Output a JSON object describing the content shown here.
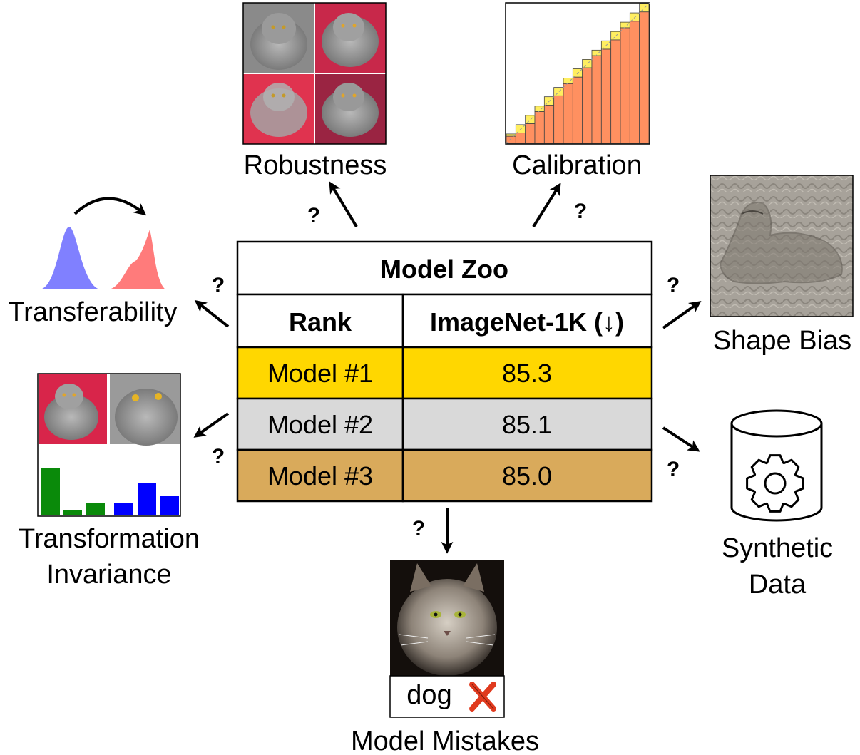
{
  "table": {
    "title": "Model Zoo",
    "columns": [
      "Rank",
      "ImageNet-1K (↓)"
    ],
    "rows": [
      {
        "model": "Model #1",
        "score": "85.3",
        "color": "#ffd700"
      },
      {
        "model": "Model #2",
        "score": "85.1",
        "color": "#d9d9d9"
      },
      {
        "model": "Model #3",
        "score": "85.0",
        "color": "#d9aa5b"
      }
    ]
  },
  "labels": {
    "robustness": "Robustness",
    "calibration": "Calibration",
    "shape_bias": "Shape Bias",
    "transferability": "Transferability",
    "transformation_invariance_line1": "Transformation",
    "transformation_invariance_line2": "Invariance",
    "synthetic_data_line1": "Synthetic",
    "synthetic_data_line2": "Data",
    "model_mistakes": "Model Mistakes",
    "mistake_prediction": "dog"
  },
  "question_mark": "?",
  "icons": {
    "wrong": "cross-icon",
    "synthetic": "gear-icon"
  },
  "colors": {
    "rank1": "#ffd700",
    "rank2": "#d9d9d9",
    "rank3": "#d9aa5b",
    "dist_source": "#8080ff",
    "dist_target": "#ff7b7b",
    "bar_green": "#0a8a0a",
    "bar_blue": "#0000ff",
    "calib_fill": "#ff9060",
    "calib_gap": "#ffee60",
    "cross": "#e03a1e"
  }
}
